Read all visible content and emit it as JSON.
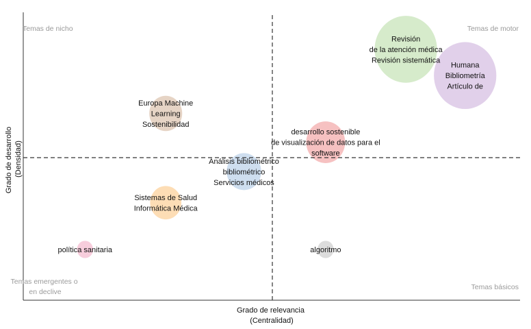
{
  "chart_data": {
    "type": "scatter",
    "subtype": "strategic-diagram-bubble",
    "xlabel": [
      "Grado de relevancia",
      "(Centralidad)"
    ],
    "ylabel": [
      "Grado de desarrollo",
      "(Densidad)"
    ],
    "xlim": [
      0,
      100
    ],
    "ylim": [
      0,
      100
    ],
    "x_divider": 50,
    "y_divider": 50,
    "grid": false,
    "quadrants": {
      "top_left": "Temas de nicho",
      "top_right": "Temas de motor",
      "bottom_left": [
        "Temas emergentes o",
        "en declive"
      ],
      "bottom_right": "Temas básicos"
    },
    "points": [
      {
        "label": [
          "Revisión",
          "de la atención médica",
          "Revisión sistemática"
        ],
        "x": 76.8,
        "y": 88.0,
        "size": 1.8,
        "color": "#cfe8c2"
      },
      {
        "label": [
          "Humana",
          "Bibliometría",
          "Artículo de"
        ],
        "x": 88.7,
        "y": 78.8,
        "size": 1.8,
        "color": "#dcc8e6"
      },
      {
        "label": [
          "Europa Machine",
          "Learning",
          "Sostenibilidad"
        ],
        "x": 28.6,
        "y": 65.5,
        "size": 0.5,
        "color": "#e2cdbb"
      },
      {
        "label": [
          "desarrollo sostenible",
          "de visualización de datos para el",
          "software"
        ],
        "x": 60.7,
        "y": 55.4,
        "size": 0.7,
        "color": "#f4b6b6"
      },
      {
        "label": [
          "Análisis bibliométrico",
          "bibliométrico",
          "Servicios médicos"
        ],
        "x": 44.3,
        "y": 45.1,
        "size": 0.55,
        "color": "#c6d8ec"
      },
      {
        "label": [
          "Sistemas de Salud",
          "Informática Médica"
        ],
        "x": 28.6,
        "y": 34.2,
        "size": 0.45,
        "color": "#fdd7a8"
      },
      {
        "label": [
          "política sanitaria"
        ],
        "x": 12.4,
        "y": 17.8,
        "size": 0.12,
        "color": "#f6c4d6"
      },
      {
        "label": [
          "algoritmo"
        ],
        "x": 60.7,
        "y": 17.8,
        "size": 0.12,
        "color": "#d6d6d6"
      }
    ]
  }
}
